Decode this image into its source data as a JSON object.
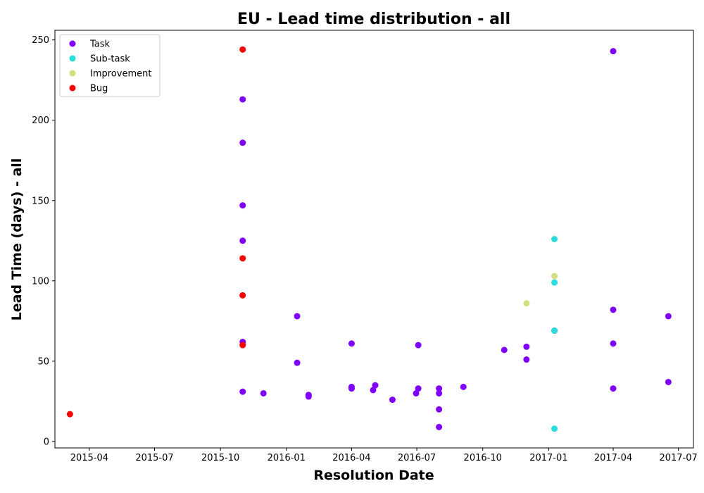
{
  "chart_data": {
    "type": "scatter",
    "title": "EU - Lead time distribution - all",
    "xlabel": "Resolution Date",
    "ylabel": "Lead Time (days) - all",
    "x_type": "date",
    "xlim": [
      "2015-02-12",
      "2017-07-22"
    ],
    "ylim": [
      -4,
      256
    ],
    "x_ticks": [
      "2015-04-01",
      "2015-07-01",
      "2015-10-01",
      "2016-01-01",
      "2016-04-01",
      "2016-07-01",
      "2016-10-01",
      "2017-01-01",
      "2017-04-01",
      "2017-07-01"
    ],
    "x_tick_labels": [
      "2015-04",
      "2015-07",
      "2015-10",
      "2016-01",
      "2016-04",
      "2016-07",
      "2016-10",
      "2017-01",
      "2017-04",
      "2017-07"
    ],
    "y_ticks": [
      0,
      50,
      100,
      150,
      200,
      250
    ],
    "grid": false,
    "legend_position": "top-left",
    "series": [
      {
        "name": "Task",
        "color": "#8000ff",
        "points": [
          {
            "x": "2015-11-01",
            "y": 213
          },
          {
            "x": "2015-11-01",
            "y": 186
          },
          {
            "x": "2015-11-01",
            "y": 147
          },
          {
            "x": "2015-11-01",
            "y": 125
          },
          {
            "x": "2015-11-01",
            "y": 62
          },
          {
            "x": "2015-11-01",
            "y": 31
          },
          {
            "x": "2015-11-30",
            "y": 30
          },
          {
            "x": "2016-01-16",
            "y": 78
          },
          {
            "x": "2016-01-16",
            "y": 49
          },
          {
            "x": "2016-02-01",
            "y": 29
          },
          {
            "x": "2016-02-01",
            "y": 28
          },
          {
            "x": "2016-04-01",
            "y": 61
          },
          {
            "x": "2016-04-01",
            "y": 34
          },
          {
            "x": "2016-04-01",
            "y": 33
          },
          {
            "x": "2016-05-04",
            "y": 35
          },
          {
            "x": "2016-05-01",
            "y": 32
          },
          {
            "x": "2016-05-28",
            "y": 26
          },
          {
            "x": "2016-07-03",
            "y": 60
          },
          {
            "x": "2016-07-03",
            "y": 33
          },
          {
            "x": "2016-06-30",
            "y": 30
          },
          {
            "x": "2016-08-01",
            "y": 33
          },
          {
            "x": "2016-08-01",
            "y": 30
          },
          {
            "x": "2016-08-01",
            "y": 20
          },
          {
            "x": "2016-08-01",
            "y": 9
          },
          {
            "x": "2016-09-04",
            "y": 34
          },
          {
            "x": "2016-10-31",
            "y": 57
          },
          {
            "x": "2016-12-01",
            "y": 59
          },
          {
            "x": "2016-12-01",
            "y": 51
          },
          {
            "x": "2017-01-09",
            "y": 69
          },
          {
            "x": "2017-04-01",
            "y": 243
          },
          {
            "x": "2017-04-01",
            "y": 82
          },
          {
            "x": "2017-04-01",
            "y": 61
          },
          {
            "x": "2017-04-01",
            "y": 33
          },
          {
            "x": "2017-06-17",
            "y": 78
          },
          {
            "x": "2017-06-17",
            "y": 37
          }
        ]
      },
      {
        "name": "Sub-task",
        "color": "#2adddd",
        "points": [
          {
            "x": "2017-01-09",
            "y": 126
          },
          {
            "x": "2017-01-09",
            "y": 99
          },
          {
            "x": "2017-01-09",
            "y": 69
          },
          {
            "x": "2017-01-09",
            "y": 8
          }
        ]
      },
      {
        "name": "Improvement",
        "color": "#d4dd80",
        "points": [
          {
            "x": "2017-01-09",
            "y": 103
          },
          {
            "x": "2016-12-01",
            "y": 86
          }
        ]
      },
      {
        "name": "Bug",
        "color": "#ff0000",
        "points": [
          {
            "x": "2015-03-05",
            "y": 17
          },
          {
            "x": "2015-11-01",
            "y": 244
          },
          {
            "x": "2015-11-01",
            "y": 114
          },
          {
            "x": "2015-11-01",
            "y": 91
          },
          {
            "x": "2015-11-01",
            "y": 60
          }
        ]
      }
    ]
  }
}
